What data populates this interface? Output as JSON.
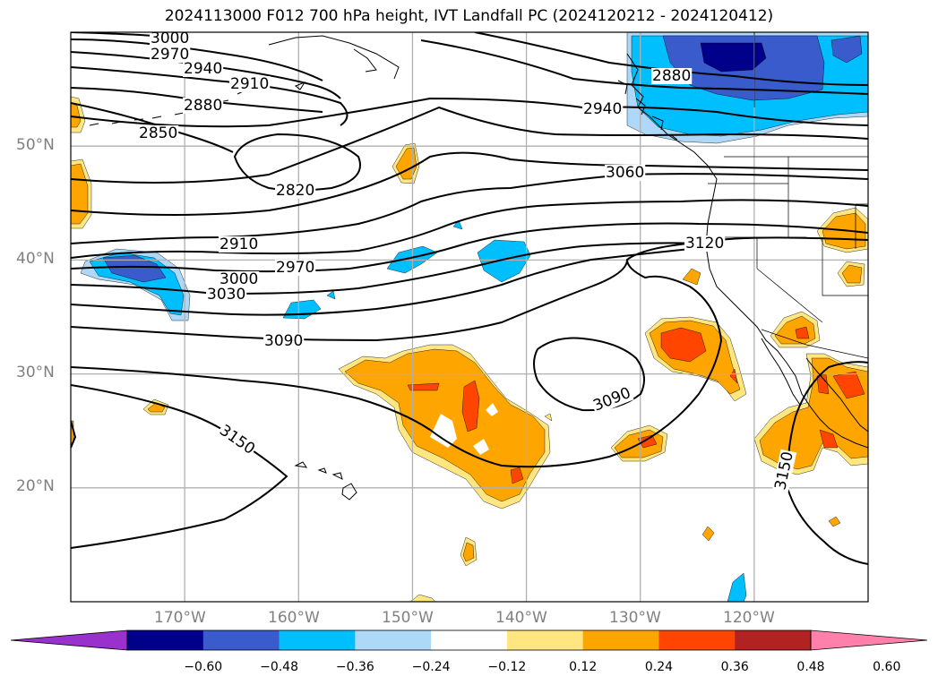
{
  "figure": {
    "title": "2024113000 F012 700 hPa height, IVT Landfall PC (2024120212 - 2024120412)"
  },
  "map": {
    "lon_range": [
      -180,
      -110
    ],
    "lat_range": [
      10,
      60
    ],
    "lat_gridlines": [
      20,
      30,
      40,
      50
    ],
    "lon_gridlines": [
      -170,
      -160,
      -150,
      -140,
      -130,
      -120
    ],
    "lat_labels": [
      "20°N",
      "30°N",
      "40°N",
      "50°N"
    ],
    "lon_labels": [
      "170°W",
      "160°W",
      "150°W",
      "140°W",
      "130°W",
      "120°W"
    ],
    "grid": true,
    "gridline_color": "#b0b0b0",
    "label_color": "#808080"
  },
  "contours": {
    "variable": "700 hPa height",
    "color": "#000000",
    "labels": [
      "3000",
      "2970",
      "2940",
      "2910",
      "2880",
      "2850",
      "2820",
      "2880",
      "2940",
      "3060",
      "3120",
      "2910",
      "3000",
      "2970",
      "3030",
      "3090",
      "3090",
      "3150",
      "3150"
    ]
  },
  "colorbar": {
    "variable": "IVT Landfall PC",
    "extend": "both",
    "ticks": [
      "−0.60",
      "−0.48",
      "−0.36",
      "−0.24",
      "−0.12",
      "0.12",
      "0.24",
      "0.36",
      "0.48",
      "0.60"
    ],
    "colors": [
      "#9932cc",
      "#00008b",
      "#3a5bcc",
      "#00bfff",
      "#add8f8",
      "#ffffff",
      "#ffe680",
      "#ffa500",
      "#ff4500",
      "#b22222",
      "#ff80aa"
    ]
  },
  "shading_colors": {
    "light_blue": "#add8f8",
    "cyan": "#00bfff",
    "blue": "#3a5bcc",
    "navy": "#00008b",
    "light_yellow": "#ffe680",
    "orange": "#ffa500",
    "red_orange": "#ff4500"
  }
}
